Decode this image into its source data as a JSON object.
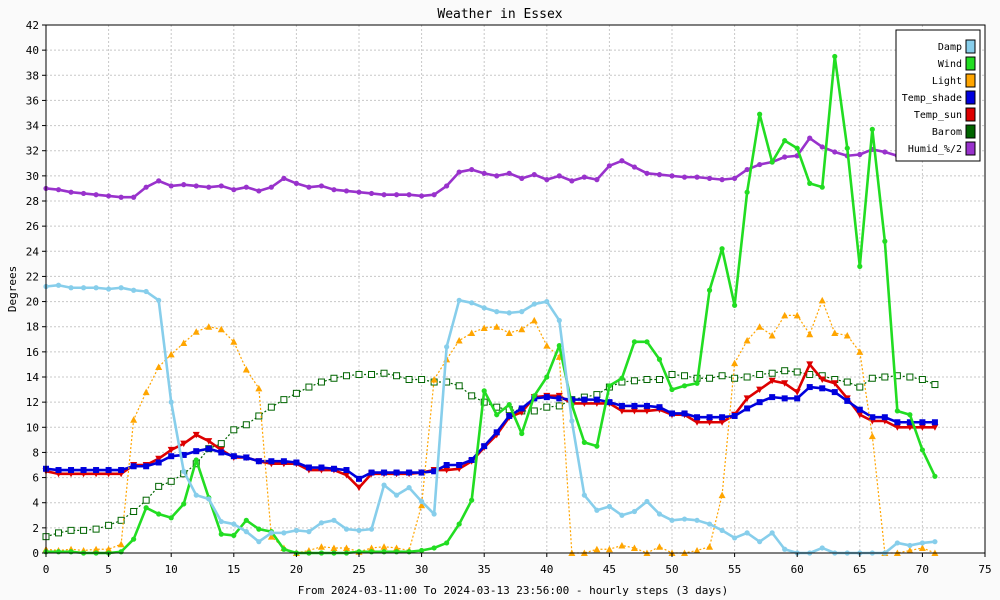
{
  "chart_data": {
    "type": "line",
    "title": "Weather in Essex",
    "xlabel": "From 2024-03-11:00 To 2024-03-13 23:56:00 - hourly steps (3 days)",
    "ylabel": "Degrees",
    "xlim": [
      0,
      75
    ],
    "ylim": [
      0,
      42
    ],
    "x_ticks": [
      0,
      5,
      10,
      15,
      20,
      25,
      30,
      35,
      40,
      45,
      50,
      55,
      60,
      65,
      70,
      75
    ],
    "y_ticks": [
      0,
      2,
      4,
      6,
      8,
      10,
      12,
      14,
      16,
      18,
      20,
      22,
      24,
      26,
      28,
      30,
      32,
      34,
      36,
      38,
      40,
      42
    ],
    "grid": true,
    "legend_position": "top-right",
    "x": [
      0,
      1,
      2,
      3,
      4,
      5,
      6,
      7,
      8,
      9,
      10,
      11,
      12,
      13,
      14,
      15,
      16,
      17,
      18,
      19,
      20,
      21,
      22,
      23,
      24,
      25,
      26,
      27,
      28,
      29,
      30,
      31,
      32,
      33,
      34,
      35,
      36,
      37,
      38,
      39,
      40,
      41,
      42,
      43,
      44,
      45,
      46,
      47,
      48,
      49,
      50,
      51,
      52,
      53,
      54,
      55,
      56,
      57,
      58,
      59,
      60,
      61,
      62,
      63,
      64,
      65,
      66,
      67,
      68,
      69,
      70,
      71
    ],
    "series": [
      {
        "name": "Damp",
        "color": "#87ceeb",
        "marker": "circle",
        "dashed": false,
        "values": [
          21.2,
          21.3,
          21.1,
          21.1,
          21.1,
          21.0,
          21.1,
          20.9,
          20.8,
          20.1,
          12.0,
          6.5,
          4.6,
          4.3,
          2.5,
          2.3,
          1.7,
          0.9,
          1.6,
          1.6,
          1.8,
          1.7,
          2.4,
          2.6,
          1.9,
          1.8,
          1.9,
          5.4,
          4.6,
          5.2,
          4.1,
          3.1,
          16.4,
          20.1,
          19.9,
          19.5,
          19.2,
          19.1,
          19.2,
          19.8,
          20.0,
          18.5,
          10.5,
          4.6,
          3.4,
          3.7,
          3.0,
          3.3,
          4.1,
          3.1,
          2.6,
          2.7,
          2.6,
          2.3,
          1.8,
          1.2,
          1.6,
          0.9,
          1.6,
          0.3,
          0.0,
          0.0,
          0.4,
          0.0,
          0.0,
          0.0,
          0.0,
          0.0,
          0.8,
          0.6,
          0.8,
          0.9
        ]
      },
      {
        "name": "Wind",
        "color": "#22dd22",
        "marker": "circle",
        "dashed": false,
        "values": [
          0.1,
          0.1,
          0.1,
          0.0,
          0.0,
          0.0,
          0.1,
          1.1,
          3.6,
          3.1,
          2.8,
          3.9,
          7.4,
          4.4,
          1.5,
          1.4,
          2.6,
          1.9,
          1.7,
          0.3,
          0.0,
          0.0,
          0.0,
          0.0,
          0.0,
          0.1,
          0.1,
          0.1,
          0.1,
          0.1,
          0.2,
          0.4,
          0.8,
          2.3,
          4.2,
          12.9,
          11.0,
          11.8,
          9.5,
          12.5,
          14.0,
          16.5,
          11.8,
          8.8,
          8.5,
          13.3,
          13.9,
          16.8,
          16.8,
          15.4,
          13.0,
          13.3,
          13.5,
          20.9,
          24.2,
          19.7,
          28.7,
          34.9,
          31.1,
          32.8,
          32.2,
          29.4,
          29.1,
          39.5,
          32.2,
          22.8,
          33.7,
          24.8,
          11.3,
          11.0,
          8.2,
          6.1
        ]
      },
      {
        "name": "Light",
        "color": "#ffa500",
        "marker": "triangle",
        "dashed": true,
        "values": [
          0.3,
          0.2,
          0.3,
          0.2,
          0.3,
          0.3,
          0.7,
          10.6,
          12.8,
          14.8,
          15.8,
          16.7,
          17.6,
          18.0,
          17.8,
          16.8,
          14.6,
          13.1,
          1.3,
          0.4,
          0.0,
          0.2,
          0.5,
          0.4,
          0.4,
          0.1,
          0.4,
          0.5,
          0.4,
          0.2,
          3.8,
          13.8,
          15.4,
          16.9,
          17.5,
          17.9,
          18.0,
          17.5,
          17.8,
          18.5,
          16.5,
          15.6,
          0.0,
          0.0,
          0.3,
          0.3,
          0.6,
          0.4,
          0.0,
          0.5,
          0.0,
          0.0,
          0.2,
          0.5,
          4.6,
          15.1,
          16.9,
          18.0,
          17.3,
          18.9,
          18.9,
          17.4,
          20.1,
          17.5,
          17.3,
          16.0,
          9.3,
          0.0,
          0.0,
          0.2,
          0.4,
          0.0
        ]
      },
      {
        "name": "Temp_shade",
        "color": "#0000dd",
        "marker": "square",
        "dashed": false,
        "values": [
          6.7,
          6.6,
          6.6,
          6.6,
          6.6,
          6.6,
          6.6,
          6.9,
          6.9,
          7.2,
          7.7,
          7.8,
          8.1,
          8.3,
          8.0,
          7.7,
          7.6,
          7.3,
          7.3,
          7.3,
          7.2,
          6.8,
          6.8,
          6.7,
          6.6,
          5.9,
          6.4,
          6.4,
          6.4,
          6.4,
          6.4,
          6.5,
          7.0,
          7.0,
          7.4,
          8.5,
          9.6,
          10.9,
          11.5,
          12.3,
          12.4,
          12.3,
          12.2,
          12.2,
          12.2,
          12.0,
          11.7,
          11.7,
          11.7,
          11.6,
          11.1,
          11.1,
          10.8,
          10.8,
          10.8,
          10.9,
          11.5,
          12.0,
          12.4,
          12.3,
          12.3,
          13.2,
          13.1,
          12.8,
          12.1,
          11.4,
          10.8,
          10.8,
          10.4,
          10.4,
          10.4,
          10.4
        ]
      },
      {
        "name": "Temp_sun",
        "color": "#dd0000",
        "marker": "triangle-down",
        "dashed": false,
        "values": [
          6.5,
          6.3,
          6.3,
          6.3,
          6.3,
          6.3,
          6.3,
          7.0,
          7.0,
          7.5,
          8.2,
          8.7,
          9.4,
          8.9,
          8.2,
          7.6,
          7.6,
          7.3,
          7.1,
          7.1,
          7.1,
          6.6,
          6.6,
          6.6,
          6.2,
          5.2,
          6.3,
          6.3,
          6.3,
          6.3,
          6.4,
          6.6,
          6.6,
          6.7,
          7.3,
          8.4,
          9.4,
          10.8,
          11.2,
          12.4,
          12.5,
          12.5,
          11.9,
          11.9,
          11.9,
          11.9,
          11.3,
          11.3,
          11.3,
          11.4,
          11.0,
          11.0,
          10.4,
          10.4,
          10.4,
          11.0,
          12.3,
          13.0,
          13.7,
          13.5,
          12.8,
          15.0,
          13.8,
          13.5,
          12.3,
          11.0,
          10.5,
          10.5,
          10.0,
          10.0,
          10.0,
          10.0
        ]
      },
      {
        "name": "Barom",
        "color": "#006400",
        "marker": "square-open",
        "dashed": true,
        "values": [
          1.3,
          1.6,
          1.8,
          1.8,
          1.9,
          2.2,
          2.6,
          3.3,
          4.2,
          5.3,
          5.7,
          6.3,
          7.1,
          8.3,
          8.7,
          9.8,
          10.2,
          10.9,
          11.6,
          12.2,
          12.7,
          13.2,
          13.6,
          13.9,
          14.1,
          14.2,
          14.2,
          14.3,
          14.1,
          13.8,
          13.8,
          13.6,
          13.6,
          13.3,
          12.5,
          12.0,
          11.6,
          11.4,
          11.3,
          11.3,
          11.6,
          11.7,
          12.2,
          12.4,
          12.6,
          13.2,
          13.6,
          13.7,
          13.8,
          13.8,
          14.2,
          14.1,
          13.9,
          13.9,
          14.1,
          13.9,
          14.0,
          14.2,
          14.3,
          14.5,
          14.4,
          14.2,
          14.1,
          13.8,
          13.6,
          13.2,
          13.9,
          14.0,
          14.1,
          14.0,
          13.8,
          13.4
        ]
      },
      {
        "name": "Humid_%/2",
        "color": "#9932cc",
        "marker": "circle",
        "dashed": false,
        "values": [
          29.0,
          28.9,
          28.7,
          28.6,
          28.5,
          28.4,
          28.3,
          28.3,
          29.1,
          29.6,
          29.2,
          29.3,
          29.2,
          29.1,
          29.2,
          28.9,
          29.1,
          28.8,
          29.1,
          29.8,
          29.4,
          29.1,
          29.2,
          28.9,
          28.8,
          28.7,
          28.6,
          28.5,
          28.5,
          28.5,
          28.4,
          28.5,
          29.2,
          30.3,
          30.5,
          30.2,
          30.0,
          30.2,
          29.8,
          30.1,
          29.7,
          30.0,
          29.6,
          29.9,
          29.7,
          30.8,
          31.2,
          30.7,
          30.2,
          30.1,
          30.0,
          29.9,
          29.9,
          29.8,
          29.7,
          29.8,
          30.5,
          30.9,
          31.1,
          31.5,
          31.6,
          33.0,
          32.3,
          31.9,
          31.6,
          31.7,
          32.1,
          31.9,
          31.6,
          31.6,
          31.5,
          31.5
        ]
      }
    ]
  }
}
